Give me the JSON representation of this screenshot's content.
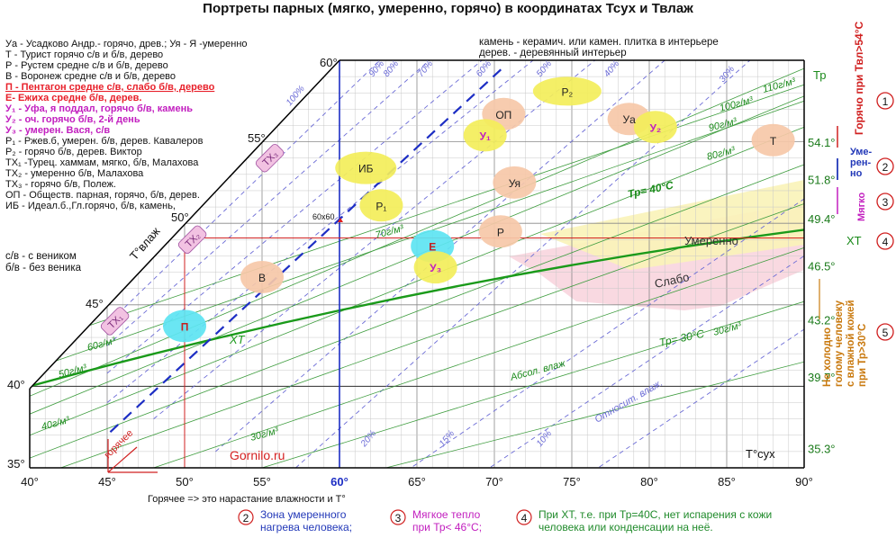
{
  "title": "Портреты парных (мягко, умеренно, горячо) в координатах Тсух и Твлаж",
  "legend_left": [
    {
      "text": "Уа - Усадково Андр.- горячо, древ.; Уя - Я -умеренно",
      "color": "#111111",
      "bold": false
    },
    {
      "text": "Т - Турист горячо с/в и б/в, дерево",
      "color": "#111111",
      "bold": false
    },
    {
      "text": "Р - Рустем средне с/в и б/в, дерево",
      "color": "#111111",
      "bold": false
    },
    {
      "text": "В - Воронеж средне с/в и б/в, дерево",
      "color": "#111111",
      "bold": false
    },
    {
      "text": "П - Пентагон средне с/в, слабо б/в, дерево",
      "color": "#e8202a",
      "bold": true,
      "underline": true
    },
    {
      "text": "Е-  Ежиха     средне б/в, дерев.",
      "color": "#e8202a",
      "bold": true
    },
    {
      "text": "У₁ - Уфа, я поддал, горячо б/в, камень",
      "color": "#c21fbf",
      "bold": true
    },
    {
      "text": "У₂ -          оч. горячо б/в, 2-й день",
      "color": "#c21fbf",
      "bold": true
    },
    {
      "text": "У₃ -                умерен. Вася, с/в",
      "color": "#c21fbf",
      "bold": true
    },
    {
      "text": "Р₁ - Ржев.б,  умерен. б/в, дерев. Кавалеров",
      "color": "#111111",
      "bold": false
    },
    {
      "text": "Р₂ -                горячо б/в, дерев.  Виктор",
      "color": "#111111",
      "bold": false
    },
    {
      "text": "ТХ₁ -Турец. хаммам, мягко, б/в, Малахова",
      "color": "#111111",
      "bold": false
    },
    {
      "text": "ТХ₂ -                     умеренно б/в, Малахова",
      "color": "#111111",
      "bold": false
    },
    {
      "text": "ТХ₃ -                     горячо б/в,  Полеж.",
      "color": "#111111",
      "bold": false
    },
    {
      "text": "ОП - Обществ. парная, горячо, б/в, дерев.",
      "color": "#111111",
      "bold": false
    },
    {
      "text": "ИБ - Идеал.б.,Гл.горячо, б/в, камень,",
      "color": "#111111",
      "bold": false
    }
  ],
  "legend_broom": [
    "с/в - с веником",
    "б/в - без веника"
  ],
  "legend_material": [
    "камень -  керамич. или камен. плитка в интерьере",
    "дерев. -  деревянный интерьер"
  ],
  "site": "Gornilo.ru",
  "footer_note": "Горячее => это нарастание влажности  и Т°",
  "arrow_label": "горячее",
  "footnotes": [
    {
      "num": "2",
      "text1": "Зона умеренного",
      "text2": "нагрева человека;",
      "color": "#2238b8"
    },
    {
      "num": "3",
      "text1": "Мягкое тепло",
      "text2": "при Тр< 46°C;",
      "color": "#c21fbf"
    },
    {
      "num": "4",
      "text1": "При ХТ, т.е. при Тр=40С, нет испарения с кожи",
      "text2": "человека или конденсации на неё.",
      "color": "#1f8a2a"
    }
  ],
  "right_side": {
    "hot": "Горячо при Твл>54°C",
    "moderate": "Уме-\nрен-\nно",
    "soft": "Мягко",
    "cold": "Не холодно голому человеку с влажной кожей при Тр>30°C",
    "circle_nums": [
      "1",
      "2",
      "3",
      "4",
      "5"
    ],
    "xt_label": "ХТ",
    "tp_label": "Тр"
  },
  "chart_data": {
    "type": "scatter",
    "title": "Портреты парных (мягко, умеренно, горячо) в координатах Тсух и Твлаж",
    "xlabel": "Т°сух",
    "ylabel": "Т°влаж",
    "x_range": [
      40,
      90
    ],
    "x_ticks": [
      "40°",
      "45°",
      "50°",
      "55°",
      "60°",
      "65°",
      "70°",
      "75°",
      "80°",
      "85°",
      "90°"
    ],
    "y_ticks_left": [
      "35°",
      "40°",
      "45°",
      "50°",
      "55°",
      "60°"
    ],
    "y_ticks_right": [
      "54.1°",
      "51.8°",
      "49.4°",
      "46.5°",
      "43.2°",
      "39.7°",
      "35.3°"
    ],
    "rh_labels": [
      "100%",
      "90%",
      "80%",
      "70%",
      "60%",
      "50%",
      "40%",
      "30%",
      "20%",
      "15%",
      "10%"
    ],
    "abs_labels": [
      "110г/м³",
      "100г/м³",
      "90г/м³",
      "80г/м³",
      "70г/м³",
      "60г/м³",
      "50г/м³",
      "40г/м³",
      "30г/м³",
      "30г/м³"
    ],
    "tp_labels": [
      "Тр= 40°C",
      "Тр= 30°C"
    ],
    "special_point": "60х60",
    "line_labels": [
      "Абсол. влаж",
      "Относит. влаж.",
      "ХТ",
      "Умеренно",
      "Слабо"
    ],
    "saunas": [
      {
        "label": "П",
        "x": 50.0,
        "y": 43.7,
        "color": "cyan"
      },
      {
        "label": "В",
        "x": 55.0,
        "y": 46.7,
        "color": "peach"
      },
      {
        "label": "ИБ",
        "x": 61.7,
        "y": 53.4,
        "color": "yellow"
      },
      {
        "label": "Р₁",
        "x": 62.7,
        "y": 51.1,
        "color": "yellow"
      },
      {
        "label": "Е",
        "x": 66.0,
        "y": 48.6,
        "color": "cyan"
      },
      {
        "label": "У₃",
        "x": 66.2,
        "y": 47.3,
        "color": "yellow"
      },
      {
        "label": "Р",
        "x": 70.4,
        "y": 49.5,
        "color": "peach"
      },
      {
        "label": "Уя",
        "x": 71.3,
        "y": 52.5,
        "color": "peach"
      },
      {
        "label": "ОП",
        "x": 70.6,
        "y": 56.7,
        "color": "peach"
      },
      {
        "label": "У₁",
        "x": 69.4,
        "y": 55.4,
        "color": "yellow"
      },
      {
        "label": "Р₂",
        "x": 74.7,
        "y": 58.1,
        "color": "yellow"
      },
      {
        "label": "Уа",
        "x": 78.7,
        "y": 56.4,
        "color": "peach"
      },
      {
        "label": "У₂",
        "x": 80.4,
        "y": 55.9,
        "color": "yellow"
      },
      {
        "label": "Т",
        "x": 88.0,
        "y": 55.1,
        "color": "peach"
      },
      {
        "label": "ТХ₁",
        "x": 45.5,
        "y": 44.0,
        "color": "pink"
      },
      {
        "label": "ТХ₂",
        "x": 50.5,
        "y": 49.0,
        "color": "pink"
      },
      {
        "label": "ТХ₃",
        "x": 55.5,
        "y": 54.0,
        "color": "pink"
      }
    ]
  }
}
